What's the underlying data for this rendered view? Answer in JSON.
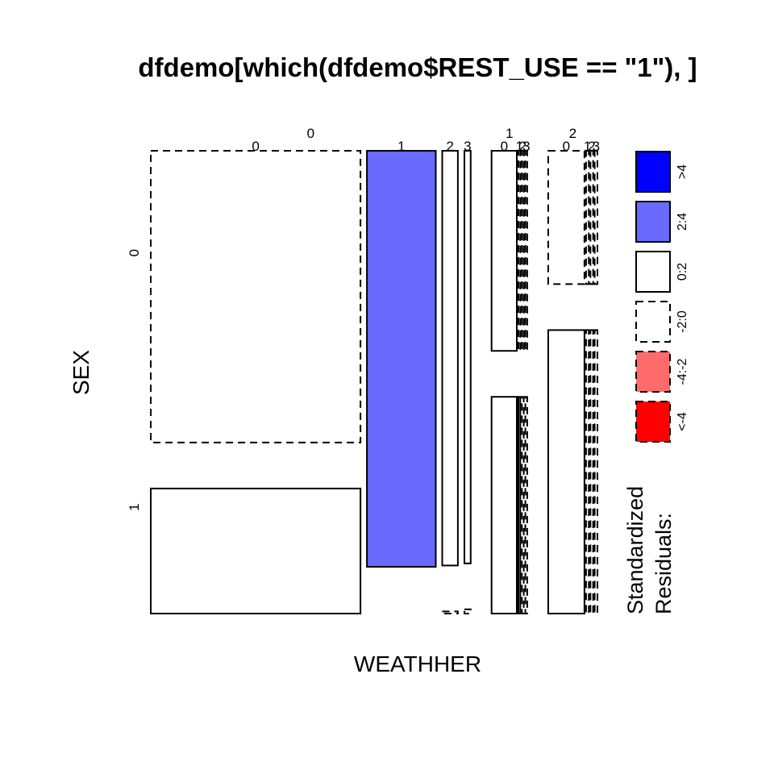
{
  "chart_data": {
    "type": "mosaic",
    "title": "dfdemo[which(dfdemo$REST_USE == \"1\"), ]",
    "xlabel": "WEATHHER",
    "ylabel": "SEX",
    "sex_levels": [
      "0",
      "1"
    ],
    "legend": {
      "title_line1": "Standardized",
      "title_line2": "Residuals:",
      "bins": [
        {
          "label": ">4",
          "color": "#0000ff",
          "dashed": false
        },
        {
          "label": "2:4",
          "color": "#6a6aff",
          "dashed": false
        },
        {
          "label": "0:2",
          "color": "#ffffff",
          "dashed": false
        },
        {
          "label": "-2:0",
          "color": "#ffffff",
          "dashed": true
        },
        {
          "label": "-4:-2",
          "color": "#ff6a6a",
          "dashed": true
        },
        {
          "label": "<-4",
          "color": "#ff0000",
          "dashed": true
        }
      ]
    },
    "weather_groups": [
      {
        "label": "0",
        "width": 0.52,
        "sex0_share": 0.49,
        "sub": [
          {
            "label": "0",
            "share": 0.67,
            "sex0": 0.7,
            "res0": "-2:0",
            "res1": "0:2"
          },
          {
            "label": "1",
            "share": 0.22,
            "sex0": 0.998,
            "res0": "2:4",
            "res1": "-2:0"
          },
          {
            "label": "2",
            "share": 0.05,
            "sex0": 0.995,
            "res0": "0:2",
            "res1": "-2:0"
          },
          {
            "label": "3",
            "share": 0.02,
            "sex0": 0.99,
            "res0": "0:2",
            "res1": "-2:0"
          }
        ]
      },
      {
        "label": "1",
        "width": 0.058,
        "sex0_share": 0.48,
        "sub": [
          {
            "label": "0",
            "share": 0.81,
            "sex0": 0.48,
            "res0": "0:2",
            "res1": "0:2"
          },
          {
            "label": "1",
            "share": 0.06,
            "sex0": 0.48,
            "res0": "-2:0",
            "res1": "0:2"
          },
          {
            "label": "2",
            "share": 0.06,
            "sex0": 0.48,
            "res0": "-2:0",
            "res1": "-2:0"
          },
          {
            "label": "3",
            "share": 0.06,
            "sex0": 0.48,
            "res0": "-2:0",
            "res1": "-2:0"
          }
        ]
      },
      {
        "label": "2",
        "width": 0.08,
        "sex0_share": 0.32,
        "sub": [
          {
            "label": "0",
            "share": 0.8,
            "sex0": 0.32,
            "res0": "-2:0",
            "res1": "0:2"
          },
          {
            "label": "1",
            "share": 0.06,
            "sex0": 0.32,
            "res0": "-2:0",
            "res1": "-2:0"
          },
          {
            "label": "2",
            "share": 0.06,
            "sex0": 0.32,
            "res0": "-2:0",
            "res1": "-2:0"
          },
          {
            "label": "3",
            "share": 0.06,
            "sex0": 0.32,
            "res0": "-2:0",
            "res1": "-2:0"
          }
        ]
      }
    ]
  }
}
